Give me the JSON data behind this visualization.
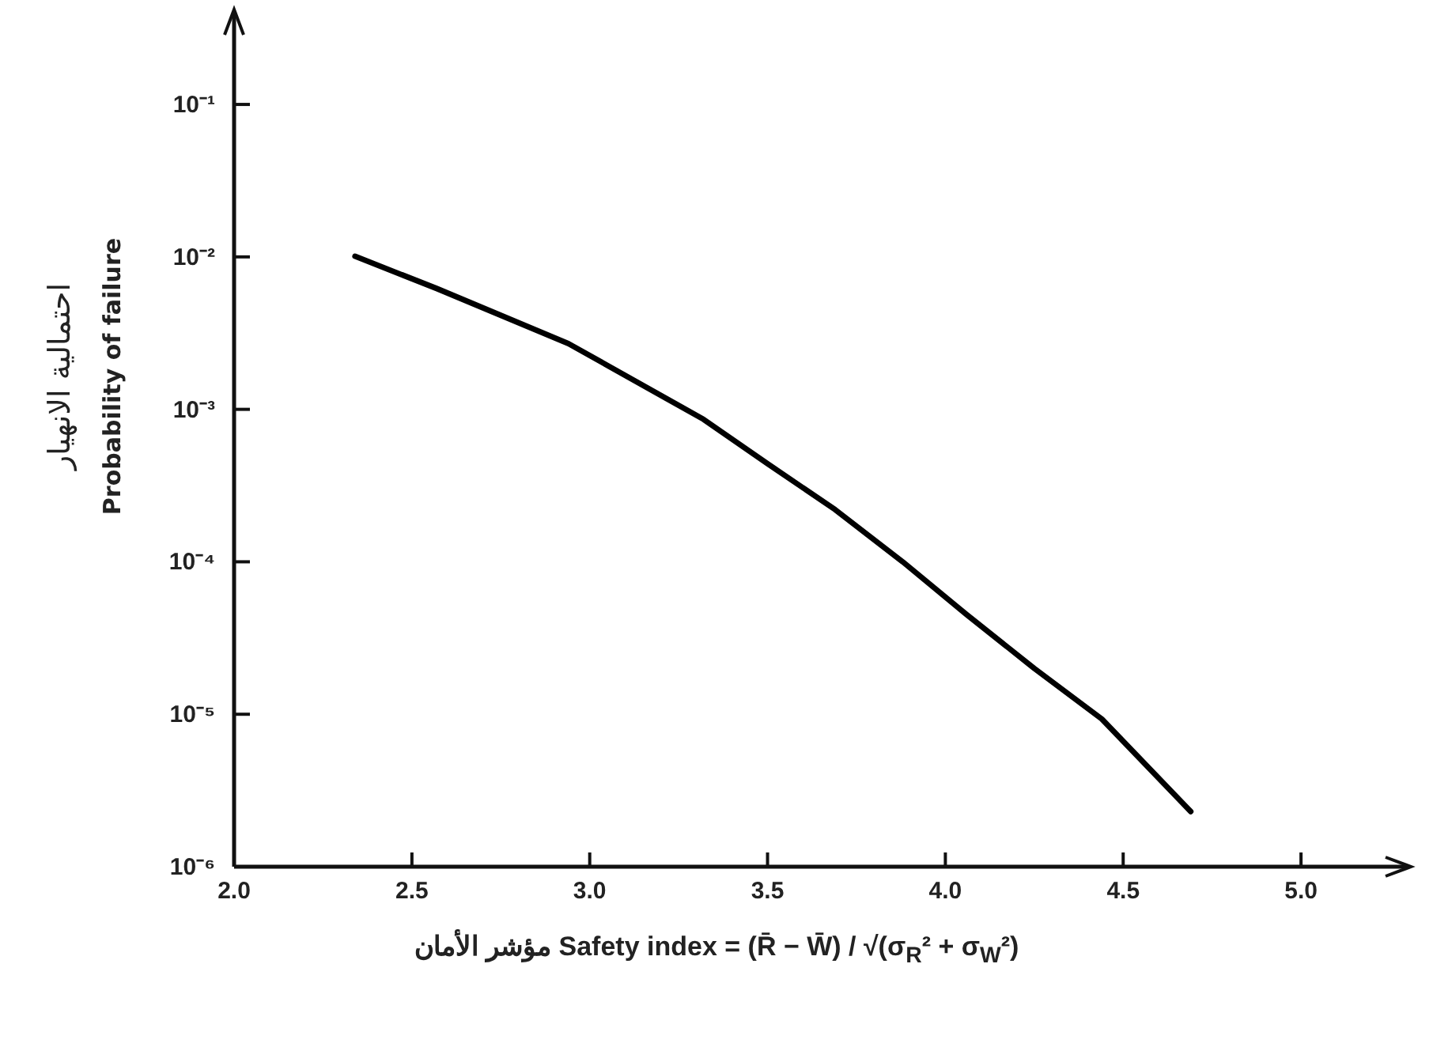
{
  "chart_data": {
    "type": "line",
    "xlabel": "مؤشر الأمان   Safety index = (R̄ − W̄) / √(σ$_{R}$² + σ$_{W}$²)",
    "ylabel": "احتمالية الانهيار\nProbability of failure",
    "log": "y",
    "xlim": [
      2.0,
      5.3
    ],
    "ylim": [
      1e-06,
      0.4
    ],
    "xticks": [
      {
        "value": 2.0,
        "label": "2.0"
      },
      2.5,
      {
        "value": 3.0,
        "label": "3.0"
      },
      3.5,
      {
        "value": 4.0,
        "label": "4.0"
      },
      4.5,
      {
        "value": 5.0,
        "label": "5.0"
      }
    ],
    "yticks": [
      {
        "value": 0.1,
        "label": "10⁻¹"
      },
      {
        "value": 0.01,
        "label": "10⁻²"
      },
      {
        "value": 0.001,
        "label": "10⁻³"
      },
      {
        "value": 0.0001,
        "label": "10⁻⁴"
      },
      {
        "value": 1e-05,
        "label": "10⁻⁵"
      },
      {
        "value": 1e-06,
        "label": "10⁻⁶"
      }
    ],
    "series": [
      {
        "color": "#000000",
        "x": [
          2.34,
          2.57,
          2.94,
          3.32,
          3.5,
          3.69,
          3.88,
          4.06,
          4.25,
          4.44,
          4.69
        ],
        "values": [
          0.0101,
          0.0062,
          0.0027,
          0.00086,
          0.00044,
          0.00022,
          0.0001,
          4.5e-05,
          2e-05,
          9.3e-06,
          2.3e-06
        ]
      }
    ]
  }
}
